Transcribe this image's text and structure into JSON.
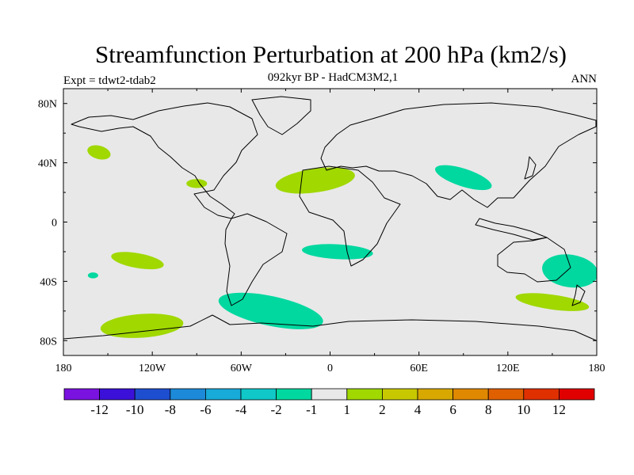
{
  "header": {
    "title": "Streamfunction Perturbation at 200 hPa (km2/s)",
    "subtitle": "092kyr BP - HadCM3M2,1",
    "experiment": "Expt = tdwt2-tdab2",
    "season": "ANN"
  },
  "axes": {
    "lat_ticks": [
      {
        "label": "80N",
        "value": 80
      },
      {
        "label": "40N",
        "value": 40
      },
      {
        "label": "0",
        "value": 0
      },
      {
        "label": "40S",
        "value": -40
      },
      {
        "label": "80S",
        "value": -80
      }
    ],
    "lon_ticks": [
      {
        "label": "180",
        "value": -180
      },
      {
        "label": "120W",
        "value": -120
      },
      {
        "label": "60W",
        "value": -60
      },
      {
        "label": "0",
        "value": 0
      },
      {
        "label": "60E",
        "value": 60
      },
      {
        "label": "120E",
        "value": 120
      },
      {
        "label": "180",
        "value": 180
      }
    ],
    "lon_range": [
      -180,
      180
    ],
    "lat_range": [
      -90,
      90
    ]
  },
  "colorbar": {
    "colors": [
      "#7a12e0",
      "#3b10d8",
      "#1e4ed0",
      "#1c8ad8",
      "#18aad8",
      "#10c8c8",
      "#00d8a0",
      "#e8e8e8",
      "#a0d800",
      "#c8c800",
      "#d8a800",
      "#e08800",
      "#e06000",
      "#e03000",
      "#e00000"
    ],
    "labels": [
      "-12",
      "-10",
      "-8",
      "-6",
      "-4",
      "-2",
      "-1",
      "1",
      "2",
      "4",
      "6",
      "8",
      "10",
      "12"
    ]
  },
  "regions": [
    {
      "name": "anomaly-north-atlantic",
      "sign": "positive",
      "color": "#a0d800",
      "lon": -10,
      "lat": 28,
      "rlon": 27,
      "rlat": 8,
      "rot": -8
    },
    {
      "name": "anomaly-gulf-mexico",
      "sign": "positive",
      "color": "#a0d800",
      "lon": -90,
      "lat": 26,
      "rlon": 7,
      "rlat": 3,
      "rot": 0
    },
    {
      "name": "anomaly-north-pacific",
      "sign": "positive",
      "color": "#a0d800",
      "lon": -156,
      "lat": 47,
      "rlon": 8,
      "rlat": 4.5,
      "rot": 15
    },
    {
      "name": "anomaly-south-pacific",
      "sign": "positive",
      "color": "#a0d800",
      "lon": -130,
      "lat": -26,
      "rlon": 18,
      "rlat": 5,
      "rot": 10
    },
    {
      "name": "anomaly-southern-pacific-high",
      "sign": "positive",
      "color": "#a0d800",
      "lon": -127,
      "lat": -70,
      "rlon": 28,
      "rlat": 8,
      "rot": -4
    },
    {
      "name": "anomaly-southern-indian-high",
      "sign": "positive",
      "color": "#a0d800",
      "lon": 150,
      "lat": -54,
      "rlon": 25,
      "rlat": 5,
      "rot": 8
    },
    {
      "name": "anomaly-south-america-low",
      "sign": "negative",
      "color": "#00d8a0",
      "lon": -40,
      "lat": -60,
      "rlon": 36,
      "rlat": 10,
      "rot": 12
    },
    {
      "name": "anomaly-south-atlantic-low",
      "sign": "negative",
      "color": "#00d8a0",
      "lon": 5,
      "lat": -20,
      "rlon": 24,
      "rlat": 5,
      "rot": 3
    },
    {
      "name": "anomaly-asia-low",
      "sign": "negative",
      "color": "#00d8a0",
      "lon": 90,
      "lat": 30,
      "rlon": 20,
      "rlat": 6,
      "rot": 18
    },
    {
      "name": "anomaly-australia-low",
      "sign": "negative",
      "color": "#00d8a0",
      "lon": 162,
      "lat": -33,
      "rlon": 19,
      "rlat": 11,
      "rot": 8
    },
    {
      "name": "anomaly-south-pacific-small-low",
      "sign": "negative",
      "color": "#00d8a0",
      "lon": -160,
      "lat": -36,
      "rlon": 3.5,
      "rlat": 2,
      "rot": 0
    }
  ]
}
